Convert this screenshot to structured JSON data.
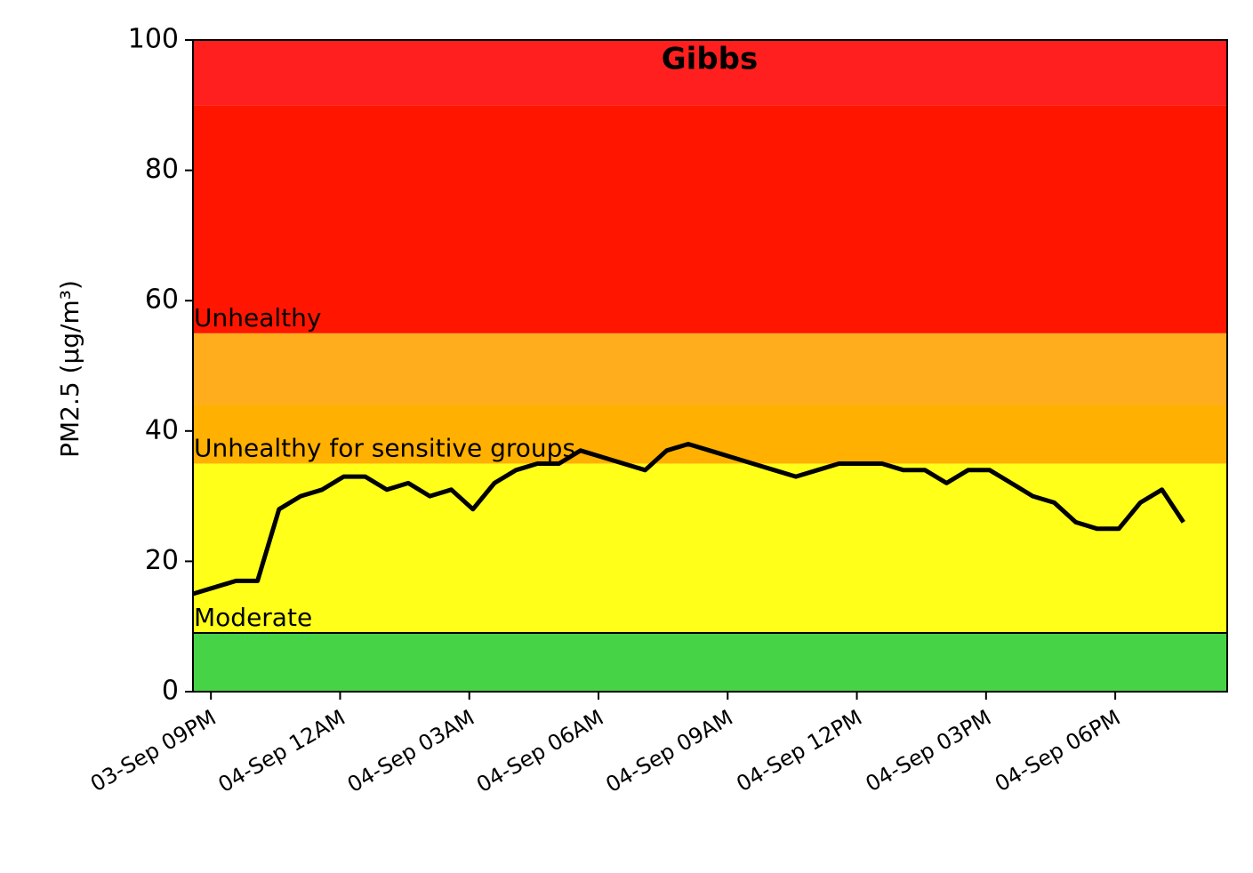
{
  "chart_data": {
    "type": "line",
    "title": "Gibbs",
    "ylabel": "PM2.5 (µg/m³)",
    "x": [
      "03-Sep 20:35",
      "03-Sep 21:05",
      "03-Sep 21:35",
      "03-Sep 22:05",
      "03-Sep 22:35",
      "03-Sep 23:05",
      "03-Sep 23:35",
      "04-Sep 00:05",
      "04-Sep 00:35",
      "04-Sep 01:05",
      "04-Sep 01:35",
      "04-Sep 02:05",
      "04-Sep 02:35",
      "04-Sep 03:05",
      "04-Sep 03:35",
      "04-Sep 04:05",
      "04-Sep 04:35",
      "04-Sep 05:05",
      "04-Sep 05:35",
      "04-Sep 06:05",
      "04-Sep 06:35",
      "04-Sep 07:05",
      "04-Sep 07:35",
      "04-Sep 08:05",
      "04-Sep 08:35",
      "04-Sep 09:05",
      "04-Sep 09:35",
      "04-Sep 10:05",
      "04-Sep 10:35",
      "04-Sep 11:05",
      "04-Sep 11:35",
      "04-Sep 12:05",
      "04-Sep 12:35",
      "04-Sep 13:05",
      "04-Sep 13:35",
      "04-Sep 14:05",
      "04-Sep 14:35",
      "04-Sep 15:05",
      "04-Sep 15:35",
      "04-Sep 16:05",
      "04-Sep 16:35",
      "04-Sep 17:05",
      "04-Sep 17:35",
      "04-Sep 18:05",
      "04-Sep 18:35",
      "04-Sep 19:05",
      "04-Sep 19:35"
    ],
    "series": [
      {
        "color": "#000000",
        "values": [
          15,
          16,
          17,
          17,
          28,
          30,
          31,
          33,
          33,
          31,
          32,
          30,
          31,
          28,
          32,
          34,
          35,
          35,
          37,
          36,
          35,
          34,
          37,
          38,
          37,
          36,
          35,
          34,
          33,
          34,
          35,
          35,
          35,
          34,
          34,
          32,
          34,
          34,
          32,
          30,
          29,
          26,
          25,
          25,
          29,
          31,
          26
        ]
      }
    ],
    "xlim": [
      "03-Sep 20:35",
      "04-Sep 20:36"
    ],
    "xticks": [
      {
        "value": "03-Sep 21:00",
        "label": "03-Sep 09PM"
      },
      {
        "value": "04-Sep 00:00",
        "label": "04-Sep 12AM"
      },
      {
        "value": "04-Sep 03:00",
        "label": "04-Sep 03AM"
      },
      {
        "value": "04-Sep 06:00",
        "label": "04-Sep 06AM"
      },
      {
        "value": "04-Sep 09:00",
        "label": "04-Sep 09AM"
      },
      {
        "value": "04-Sep 12:00",
        "label": "04-Sep 12PM"
      },
      {
        "value": "04-Sep 15:00",
        "label": "04-Sep 03PM"
      },
      {
        "value": "04-Sep 18:00",
        "label": "04-Sep 06PM"
      }
    ],
    "ylim": [
      0,
      100
    ],
    "yticks": [
      0,
      20,
      40,
      60,
      80,
      100
    ],
    "bands": [
      {
        "lo": 0,
        "hi": 9,
        "color": "#46d446"
      },
      {
        "lo": 9,
        "hi": 35,
        "color": "#ffff1a",
        "label": "Moderate"
      },
      {
        "lo": 35,
        "hi": 44,
        "color": "#ffb000",
        "label": "Unhealthy for sensitive groups"
      },
      {
        "lo": 44,
        "hi": 55,
        "color": "#ffad1d"
      },
      {
        "lo": 55,
        "hi": 90,
        "color": "#ff1500",
        "label": "Unhealthy"
      },
      {
        "lo": 90,
        "hi": 100,
        "color": "#ff1f1f"
      }
    ],
    "hline": 9
  }
}
